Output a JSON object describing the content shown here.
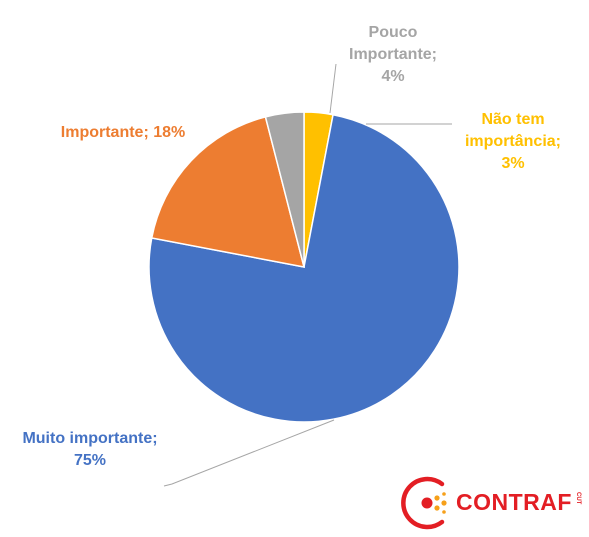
{
  "chart_data": {
    "type": "pie",
    "title": "",
    "categories": [
      "Muito importante",
      "Importante",
      "Pouco Importante",
      "Não tem importância"
    ],
    "values": [
      75,
      18,
      4,
      3
    ],
    "colors": [
      "#4472c4",
      "#ed7d31",
      "#a5a5a5",
      "#ffc000"
    ],
    "label_colors": [
      "#4472c4",
      "#ed7d31",
      "#a5a5a5",
      "#ffc000"
    ],
    "labels": [
      [
        "Muito importante;",
        "75%"
      ],
      [
        "Importante; 18%"
      ],
      [
        "Pouco",
        "Importante;",
        "4%"
      ],
      [
        "Não tem",
        "importância;",
        "3%"
      ]
    ]
  },
  "logo": {
    "text": "CONTRAF",
    "sub": "CUT",
    "color": "#e31e24",
    "accent": "#f6a01a"
  }
}
